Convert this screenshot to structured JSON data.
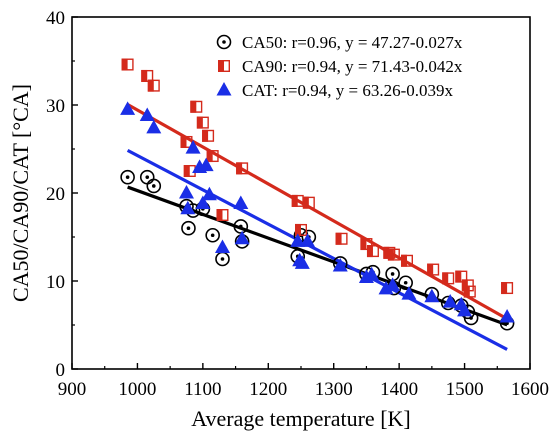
{
  "chart_data": {
    "type": "scatter",
    "xlabel": "Average temperature [K]",
    "ylabel": "CA50/CA90/CAT [°CA]",
    "xlim": [
      900,
      1600
    ],
    "ylim": [
      0,
      40
    ],
    "xticks": [
      900,
      1000,
      1100,
      1200,
      1300,
      1400,
      1500,
      1600
    ],
    "yticks": [
      0,
      10,
      20,
      30,
      40
    ],
    "grid": false,
    "legend_position": "top-right",
    "series": [
      {
        "name": "CA50: r=0.96, y = 47.27-0.027x",
        "marker": "circle-dot",
        "color": "#000000",
        "fit": {
          "intercept": 47.27,
          "slope": -0.027,
          "x_range": [
            985,
            1565
          ]
        },
        "points": [
          [
            985,
            21.8
          ],
          [
            1015,
            21.8
          ],
          [
            1025,
            20.8
          ],
          [
            1075,
            18.5
          ],
          [
            1078,
            16.0
          ],
          [
            1085,
            18.0
          ],
          [
            1100,
            18.2
          ],
          [
            1115,
            15.2
          ],
          [
            1130,
            12.5
          ],
          [
            1158,
            16.2
          ],
          [
            1160,
            14.5
          ],
          [
            1245,
            12.8
          ],
          [
            1250,
            15.2
          ],
          [
            1262,
            15.0
          ],
          [
            1310,
            12.0
          ],
          [
            1350,
            10.8
          ],
          [
            1360,
            11.0
          ],
          [
            1390,
            10.8
          ],
          [
            1392,
            9.2
          ],
          [
            1410,
            9.8
          ],
          [
            1450,
            8.5
          ],
          [
            1475,
            7.5
          ],
          [
            1495,
            7.2
          ],
          [
            1505,
            6.5
          ],
          [
            1510,
            5.8
          ],
          [
            1565,
            5.2
          ]
        ]
      },
      {
        "name": "CA90: r=0.94, y = 71.43-0.042x",
        "marker": "half-filled-square",
        "color": "#d42a1c",
        "fit": {
          "intercept": 71.43,
          "slope": -0.042,
          "x_range": [
            985,
            1565
          ]
        },
        "points": [
          [
            985,
            34.6
          ],
          [
            1015,
            33.3
          ],
          [
            1025,
            32.2
          ],
          [
            1075,
            25.8
          ],
          [
            1080,
            22.5
          ],
          [
            1090,
            29.8
          ],
          [
            1100,
            28.0
          ],
          [
            1108,
            26.5
          ],
          [
            1115,
            24.2
          ],
          [
            1130,
            17.5
          ],
          [
            1160,
            22.8
          ],
          [
            1245,
            19.1
          ],
          [
            1250,
            15.8
          ],
          [
            1262,
            18.9
          ],
          [
            1312,
            14.8
          ],
          [
            1350,
            14.2
          ],
          [
            1360,
            13.4
          ],
          [
            1385,
            13.2
          ],
          [
            1392,
            13.0
          ],
          [
            1412,
            12.3
          ],
          [
            1452,
            11.3
          ],
          [
            1475,
            10.3
          ],
          [
            1495,
            10.5
          ],
          [
            1505,
            9.5
          ],
          [
            1508,
            8.8
          ],
          [
            1565,
            9.2
          ]
        ]
      },
      {
        "name": "CAT: r=0.94, y = 63.26-0.039x",
        "marker": "triangle",
        "color": "#1a2ee6",
        "fit": {
          "intercept": 63.26,
          "slope": -0.039,
          "x_range": [
            985,
            1565
          ]
        },
        "points": [
          [
            985,
            29.5
          ],
          [
            1015,
            28.8
          ],
          [
            1025,
            27.4
          ],
          [
            1075,
            20.0
          ],
          [
            1077,
            18.2
          ],
          [
            1085,
            25.1
          ],
          [
            1095,
            22.9
          ],
          [
            1100,
            18.8
          ],
          [
            1105,
            23.1
          ],
          [
            1110,
            19.8
          ],
          [
            1130,
            13.8
          ],
          [
            1158,
            18.8
          ],
          [
            1160,
            14.8
          ],
          [
            1245,
            14.5
          ],
          [
            1248,
            12.3
          ],
          [
            1252,
            12.0
          ],
          [
            1260,
            14.5
          ],
          [
            1310,
            11.7
          ],
          [
            1350,
            10.4
          ],
          [
            1358,
            10.7
          ],
          [
            1380,
            9.1
          ],
          [
            1390,
            9.5
          ],
          [
            1415,
            8.5
          ],
          [
            1450,
            8.2
          ],
          [
            1478,
            7.6
          ],
          [
            1495,
            7.3
          ],
          [
            1500,
            6.6
          ],
          [
            1565,
            5.9
          ]
        ]
      }
    ]
  }
}
